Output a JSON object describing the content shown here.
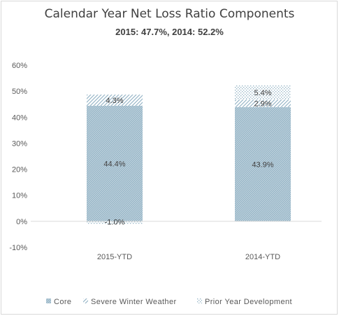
{
  "chart_data": {
    "type": "bar",
    "stacked": true,
    "title": "Calendar Year Net Loss Ratio Components",
    "subtitle": "2015: 47.7%, 2014: 52.2%",
    "categories": [
      "2015-YTD",
      "2014-YTD"
    ],
    "series": [
      {
        "name": "Core",
        "values": [
          44.4,
          43.9
        ],
        "labels": [
          "44.4%",
          "43.9%"
        ],
        "color": "#9bb8c9",
        "pattern": "dense-diagonal"
      },
      {
        "name": "Severe Winter Weather",
        "values": [
          4.3,
          2.9
        ],
        "labels": [
          "4.3%",
          "2.9%"
        ],
        "color": "#9bb8c9",
        "pattern": "wide-diagonal"
      },
      {
        "name": "Prior Year Development",
        "values": [
          -1.0,
          5.4
        ],
        "labels": [
          "-1.0%",
          "5.4%"
        ],
        "color": "#9bb8c9",
        "pattern": "dots"
      }
    ],
    "ylim": [
      -10,
      60
    ],
    "yticks": [
      -10,
      0,
      10,
      20,
      30,
      40,
      50,
      60
    ],
    "ytick_labels": [
      "-10%",
      "0%",
      "10%",
      "20%",
      "30%",
      "40%",
      "50%",
      "60%"
    ],
    "grid": false,
    "legend_position": "bottom",
    "xlabel": "",
    "ylabel": ""
  }
}
